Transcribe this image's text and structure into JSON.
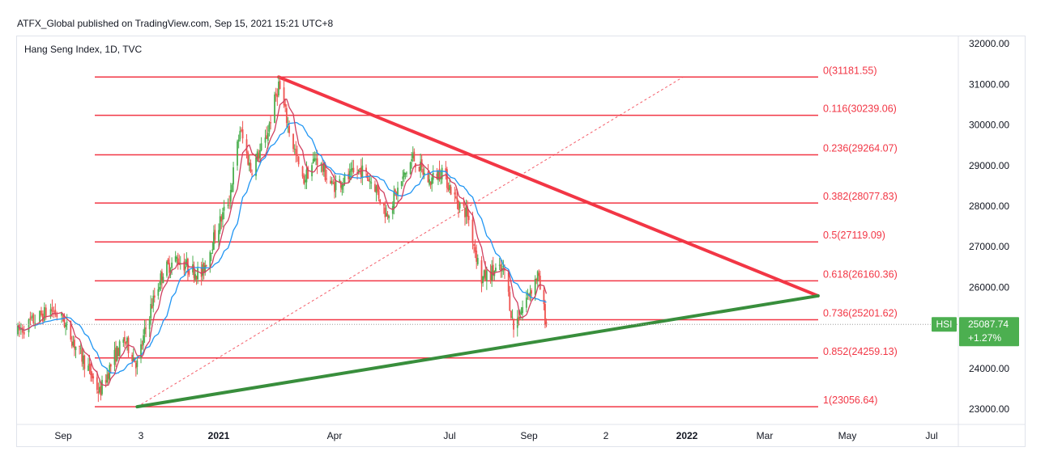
{
  "header": {
    "published_text": "ATFX_Global published on TradingView.com, Sep 15, 2021 15:21 UTC+8",
    "symbol_text": "Hang Seng Index, 1D, TVC"
  },
  "colors": {
    "fib_line": "#f23645",
    "resistance_trend": "#f23645",
    "support_trend": "#388e3c",
    "candle_up": "#4caf50",
    "candle_down": "#ef5350",
    "ma_fast": "#d04060",
    "ma_slow": "#2196f3",
    "price_badge": "#4caf50"
  },
  "price_badge": {
    "symbol": "HSI",
    "price": "25087.74",
    "change": "+1.27%"
  },
  "chart_data": {
    "type": "candlestick",
    "title": "Hang Seng Index, 1D, TVC",
    "y_axis": {
      "ticks": [
        "32000.00",
        "31000.00",
        "30000.00",
        "29000.00",
        "28000.00",
        "27000.00",
        "26000.00",
        "25000.00",
        "24000.00",
        "23000.00"
      ],
      "range": [
        22800,
        32200
      ],
      "position": "right"
    },
    "x_axis": {
      "ticks": [
        {
          "label": "Sep",
          "bold": false
        },
        {
          "label": "3",
          "bold": false
        },
        {
          "label": "2021",
          "bold": true
        },
        {
          "label": "Apr",
          "bold": false
        },
        {
          "label": "Jul",
          "bold": false
        },
        {
          "label": "Sep",
          "bold": false
        },
        {
          "label": "2",
          "bold": false
        },
        {
          "label": "2022",
          "bold": true
        },
        {
          "label": "Mar",
          "bold": false
        },
        {
          "label": "May",
          "bold": false
        },
        {
          "label": "Jul",
          "bold": false
        }
      ]
    },
    "fib_levels": [
      {
        "ratio": "0",
        "price": 31181.55,
        "label": "0(31181.55)"
      },
      {
        "ratio": "0.116",
        "price": 30239.06,
        "label": "0.116(30239.06)"
      },
      {
        "ratio": "0.236",
        "price": 29264.07,
        "label": "0.236(29264.07)"
      },
      {
        "ratio": "0.382",
        "price": 28077.83,
        "label": "0.382(28077.83)"
      },
      {
        "ratio": "0.5",
        "price": 27119.09,
        "label": "0.5(27119.09)"
      },
      {
        "ratio": "0.618",
        "price": 26160.36,
        "label": "0.618(26160.36)"
      },
      {
        "ratio": "0.736",
        "price": 25201.62,
        "label": "0.736(25201.62)"
      },
      {
        "ratio": "0.852",
        "price": 24259.13,
        "label": "0.852(24259.13)"
      },
      {
        "ratio": "1",
        "price": 23056.64,
        "label": "1(23056.64)"
      }
    ],
    "trendlines": [
      {
        "name": "resistance",
        "from": {
          "date": "2021-02-18",
          "price": 31181.55
        },
        "to": {
          "date": "2022-04-10",
          "price": 25790
        }
      },
      {
        "name": "support",
        "from": {
          "date": "2020-10-30",
          "price": 23056.64
        },
        "to": {
          "date": "2022-04-10",
          "price": 25790
        }
      },
      {
        "name": "fib-diagonal",
        "from": {
          "date": "2020-10-30",
          "price": 23056.64
        },
        "to": {
          "date": "2021-12-31",
          "price": 31181.55
        }
      }
    ],
    "last_price": 25087.74,
    "price_path": [
      [
        "2020-08-03",
        24900
      ],
      [
        "2020-08-14",
        25200
      ],
      [
        "2020-08-24",
        25450
      ],
      [
        "2020-09-01",
        25200
      ],
      [
        "2020-09-10",
        24600
      ],
      [
        "2020-09-21",
        24000
      ],
      [
        "2020-09-30",
        23400
      ],
      [
        "2020-10-12",
        24300
      ],
      [
        "2020-10-20",
        24700
      ],
      [
        "2020-10-30",
        24100
      ],
      [
        "2020-11-10",
        25500
      ],
      [
        "2020-11-20",
        26400
      ],
      [
        "2020-12-01",
        26700
      ],
      [
        "2020-12-10",
        26500
      ],
      [
        "2020-12-21",
        26300
      ],
      [
        "2020-12-31",
        27200
      ],
      [
        "2021-01-12",
        28200
      ],
      [
        "2021-01-20",
        29900
      ],
      [
        "2021-01-28",
        28900
      ],
      [
        "2021-02-08",
        29600
      ],
      [
        "2021-02-18",
        31000
      ],
      [
        "2021-02-25",
        30000
      ],
      [
        "2021-03-08",
        28600
      ],
      [
        "2021-03-18",
        29200
      ],
      [
        "2021-03-30",
        28500
      ],
      [
        "2021-04-12",
        28700
      ],
      [
        "2021-04-22",
        28900
      ],
      [
        "2021-05-03",
        28500
      ],
      [
        "2021-05-12",
        27800
      ],
      [
        "2021-05-24",
        28600
      ],
      [
        "2021-06-02",
        29200
      ],
      [
        "2021-06-15",
        28600
      ],
      [
        "2021-06-25",
        28900
      ],
      [
        "2021-07-05",
        28200
      ],
      [
        "2021-07-15",
        27800
      ],
      [
        "2021-07-26",
        26200
      ],
      [
        "2021-08-04",
        26400
      ],
      [
        "2021-08-13",
        26400
      ],
      [
        "2021-08-20",
        25000
      ],
      [
        "2021-08-31",
        25800
      ],
      [
        "2021-09-08",
        26300
      ],
      [
        "2021-09-15",
        25087.74
      ]
    ]
  }
}
